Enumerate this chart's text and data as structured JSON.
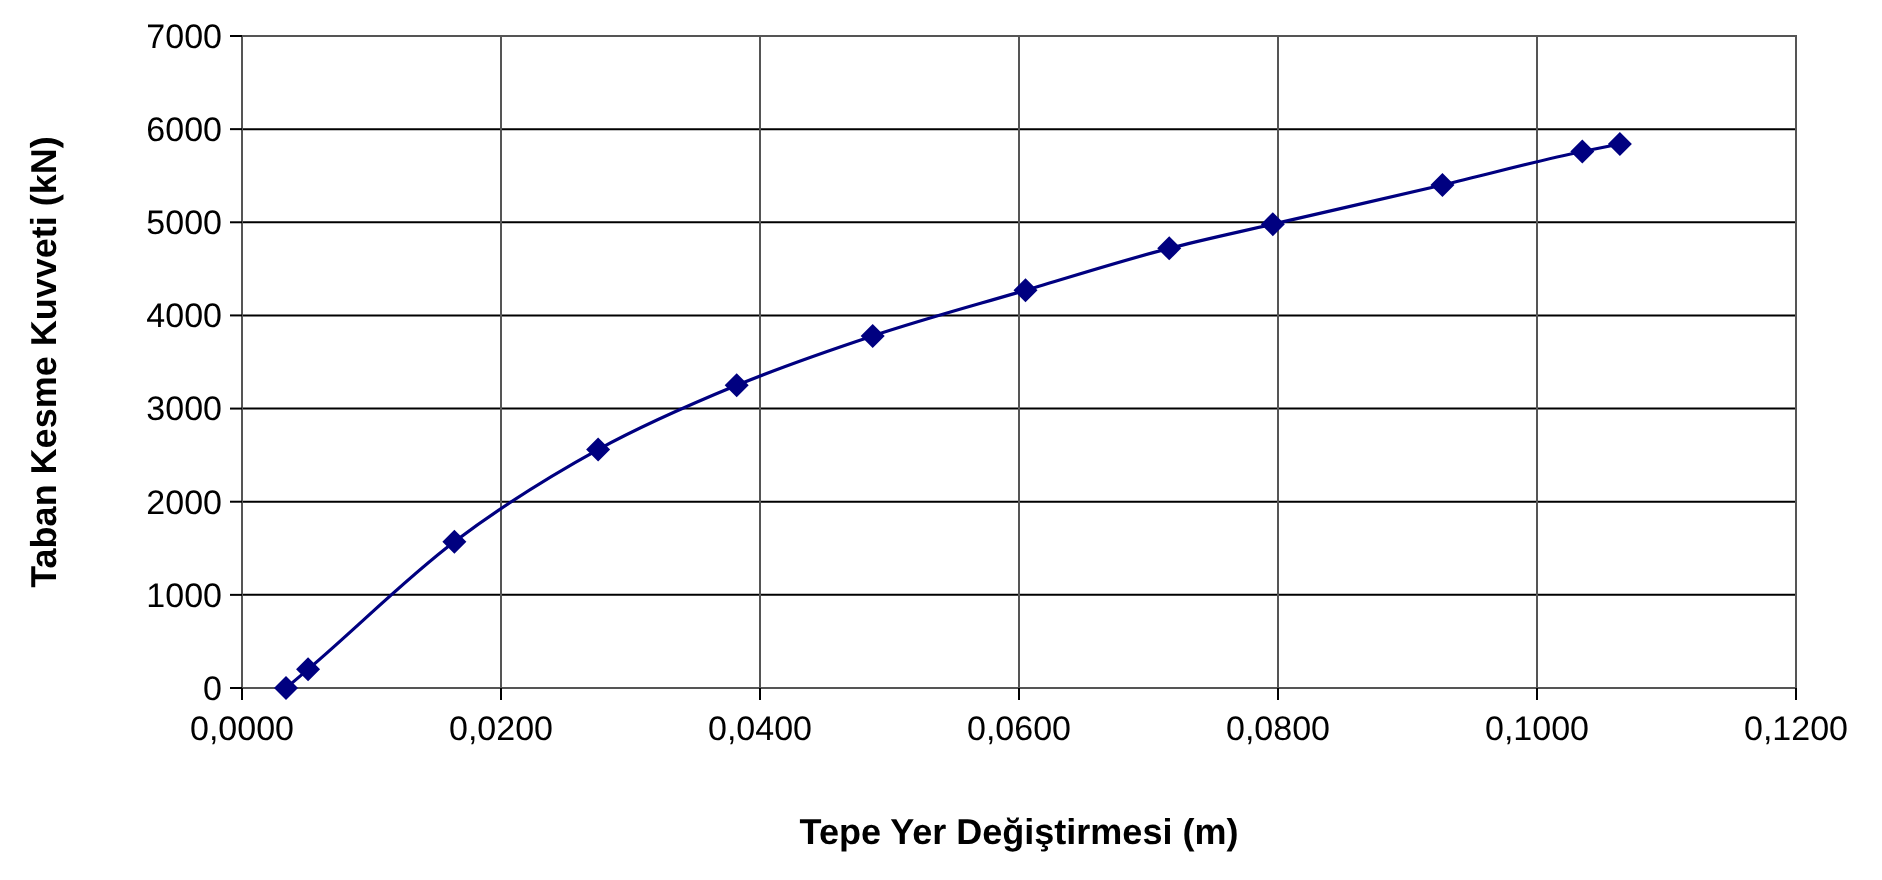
{
  "chart_data": {
    "type": "line",
    "xlabel": "Tepe Yer Değiştirmesi (m)",
    "ylabel": "Taban Kesme Kuvveti (kN)",
    "series": [
      {
        "color": "#000080",
        "x": [
          0.0034,
          0.0051,
          0.0164,
          0.0275,
          0.0382,
          0.0487,
          0.0605,
          0.0716,
          0.0796,
          0.0927,
          0.1035,
          0.1064
        ],
        "values": [
          0,
          200,
          1570,
          2560,
          3250,
          3780,
          4270,
          4720,
          4980,
          5400,
          5760,
          5840
        ]
      }
    ],
    "xlim": [
      0,
      0.12
    ],
    "xticks": [
      {
        "value": 0,
        "label": "0,0000"
      },
      {
        "value": 0.02,
        "label": "0,0200"
      },
      {
        "value": 0.04,
        "label": "0,0400"
      },
      {
        "value": 0.06,
        "label": "0,0600"
      },
      {
        "value": 0.08,
        "label": "0,0800"
      },
      {
        "value": 0.1,
        "label": "0,1000"
      },
      {
        "value": 0.12,
        "label": "0,1200"
      }
    ],
    "ylim": [
      0,
      7000
    ],
    "yticks": [
      0,
      1000,
      2000,
      3000,
      4000,
      5000,
      6000,
      7000
    ],
    "grid": true,
    "marker": "diamond",
    "line_style": "solid"
  }
}
